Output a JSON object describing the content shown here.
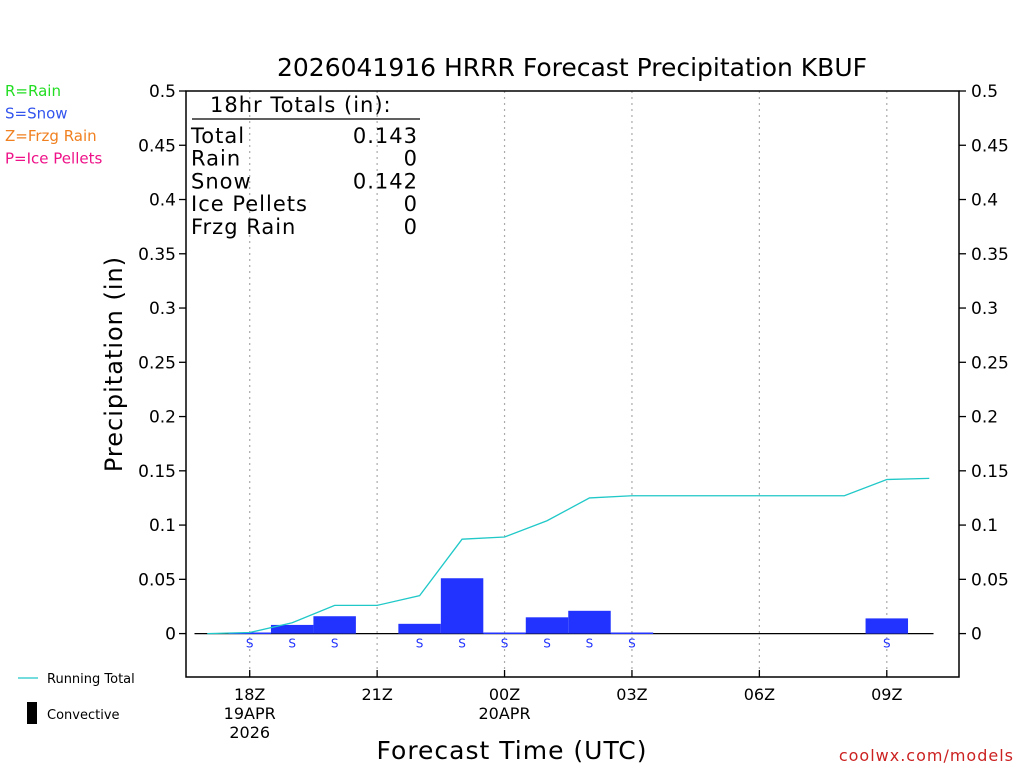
{
  "title": "2026041916 HRRR Forecast Precipitation KBUF",
  "legend_types": [
    {
      "label": "R=Rain",
      "color": "#22dd22"
    },
    {
      "label": "S=Snow",
      "color": "#3355ee"
    },
    {
      "label": "Z=Frzg Rain",
      "color": "#f08020"
    },
    {
      "label": "P=Ice Pellets",
      "color": "#ee1188"
    }
  ],
  "totals_box": {
    "header": "18hr Totals (in):",
    "rows": [
      {
        "label": "Total",
        "value": "0.143"
      },
      {
        "label": "Rain",
        "value": "0"
      },
      {
        "label": "Snow",
        "value": "0.142"
      },
      {
        "label": "Ice Pellets",
        "value": "0"
      },
      {
        "label": "Frzg Rain",
        "value": "0"
      }
    ]
  },
  "bottom_legend": {
    "running_total": "Running Total",
    "convective": "Convective",
    "running_total_color": "#20c8c8"
  },
  "credit": "coolwx.com/models",
  "colors": {
    "bar": "#2233ff",
    "snow_label": "#2233ff",
    "grid": "#aaaaaa",
    "credit": "#cc2222"
  },
  "chart_data": {
    "type": "bar",
    "xlabel": "Forecast Time (UTC)",
    "ylabel": "Precipitation (in)",
    "ylim": [
      -0.04,
      0.5
    ],
    "xlim": [
      16.5,
      34.7
    ],
    "yticks": [
      "0.5",
      "0.45",
      "0.4",
      "0.35",
      "0.3",
      "0.25",
      "0.2",
      "0.15",
      "0.1",
      "0.05",
      "0"
    ],
    "ytick_values": [
      0.5,
      0.45,
      0.4,
      0.35,
      0.3,
      0.25,
      0.2,
      0.15,
      0.1,
      0.05,
      0
    ],
    "xticks": [
      {
        "hour": 18,
        "lines": [
          "18Z",
          "19APR",
          "2026"
        ]
      },
      {
        "hour": 21,
        "lines": [
          "21Z"
        ]
      },
      {
        "hour": 24,
        "lines": [
          "00Z",
          "20APR"
        ]
      },
      {
        "hour": 27,
        "lines": [
          "03Z"
        ]
      },
      {
        "hour": 30,
        "lines": [
          "06Z"
        ]
      },
      {
        "hour": 33,
        "lines": [
          "09Z"
        ]
      }
    ],
    "grid": "vertical dotted",
    "hours": [
      17,
      18,
      19,
      20,
      21,
      22,
      23,
      24,
      25,
      26,
      27,
      28,
      29,
      30,
      31,
      32,
      33
    ],
    "hourly_precip": [
      0.0,
      0.001,
      0.008,
      0.016,
      0.0,
      0.009,
      0.051,
      0.001,
      0.015,
      0.021,
      0.001,
      0.0,
      0.0,
      0.0,
      0.0,
      0.0,
      0.014
    ],
    "type_labels": [
      "",
      "S",
      "S",
      "S",
      "",
      "S",
      "S",
      "S",
      "S",
      "S",
      "S",
      "",
      "",
      "",
      "",
      "",
      "S"
    ],
    "running_total_hours": [
      17,
      18,
      19,
      20,
      21,
      22,
      23,
      24,
      25,
      26,
      27,
      28,
      29,
      30,
      31,
      32,
      33,
      34
    ],
    "running_total": [
      0.0,
      0.001,
      0.01,
      0.026,
      0.026,
      0.035,
      0.087,
      0.089,
      0.104,
      0.125,
      0.127,
      0.127,
      0.127,
      0.127,
      0.127,
      0.127,
      0.142,
      0.143
    ]
  }
}
